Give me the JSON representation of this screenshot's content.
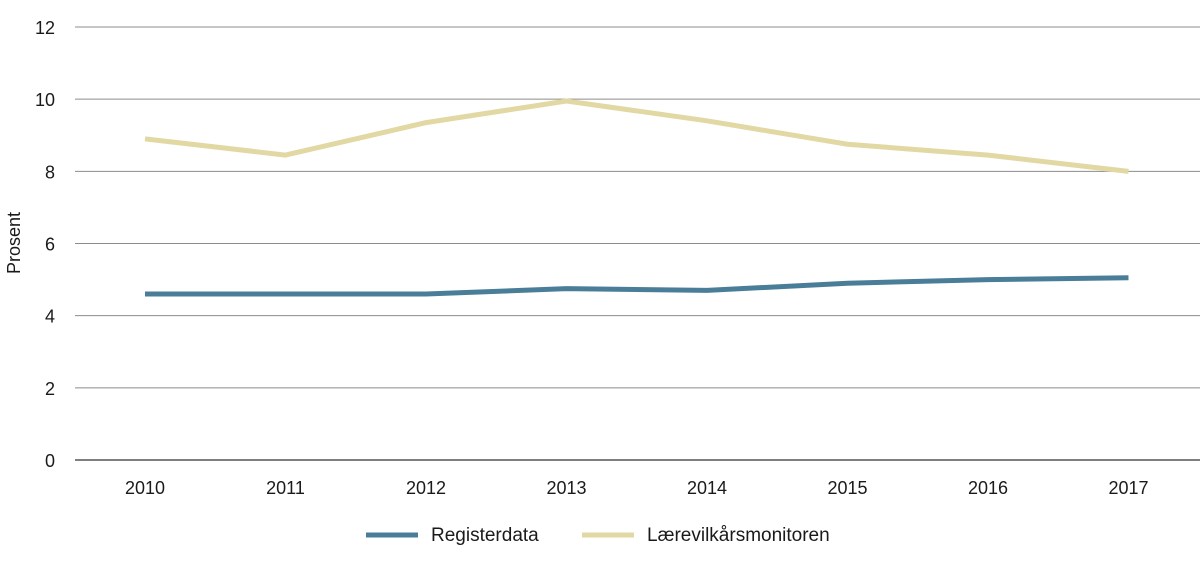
{
  "chart_data": {
    "type": "line",
    "title": "",
    "xlabel": "",
    "ylabel": "Prosent",
    "categories": [
      "2010",
      "2011",
      "2012",
      "2013",
      "2014",
      "2015",
      "2016",
      "2017"
    ],
    "ylim": [
      0,
      12
    ],
    "yticks": [
      "0",
      "2",
      "4",
      "6",
      "8",
      "10",
      "12"
    ],
    "grid": true,
    "legend_position": "bottom",
    "series": [
      {
        "name": "Registerdata",
        "color": "#4a7e98",
        "values": [
          4.6,
          4.6,
          4.6,
          4.75,
          4.7,
          4.9,
          5.0,
          5.05
        ]
      },
      {
        "name": "Lærevilkårsmonitoren",
        "color": "#e2d8a4",
        "values": [
          8.9,
          8.45,
          9.35,
          9.95,
          9.4,
          8.75,
          8.45,
          8.0
        ]
      }
    ]
  }
}
